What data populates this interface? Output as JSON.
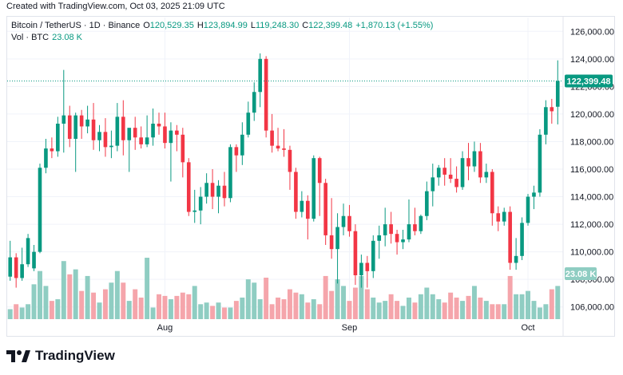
{
  "header": {
    "text": "Created with TradingView.com, Oct 03, 2025 21:09 UTC"
  },
  "legend": {
    "symbol": "Bitcoin / TetherUS · 1D · Binance",
    "o_label": "O",
    "o_value": "120,529.35",
    "h_label": "H",
    "h_value": "123,894.99",
    "l_label": "L",
    "l_value": "119,248.30",
    "c_label": "C",
    "c_value": "122,399.48",
    "change": "+1,870.13 (+1.55%)",
    "vol_label": "Vol · BTC",
    "vol_value": "23.08 K"
  },
  "footer": {
    "brand": "TradingView",
    "logo_icon": "tradingview-logo-icon"
  },
  "colors": {
    "up": "#089981",
    "down": "#f23645",
    "vol_up": "#8fcdc2",
    "vol_down": "#f5a5ab",
    "grid": "#f0f3fa",
    "last_line": "#089981"
  },
  "chart_data": {
    "type": "candlestick",
    "ylim": [
      105000,
      127000
    ],
    "y_ticks": [
      "106,000.00",
      "108,000.00",
      "110,000.00",
      "112,000.00",
      "114,000.00",
      "116,000.00",
      "118,000.00",
      "120,000.00",
      "122,000.00",
      "124,000.00",
      "126,000.00"
    ],
    "x_ticks": [
      {
        "label": "Aug",
        "index": 26
      },
      {
        "label": "Sep",
        "index": 57
      },
      {
        "label": "Oct",
        "index": 87
      }
    ],
    "last_price_label": "122,399.48",
    "last_price": 122399.48,
    "volume_label": "23.08 K",
    "candles": [
      {
        "o": 108200,
        "h": 110800,
        "l": 107900,
        "c": 109600,
        "v": 12
      },
      {
        "o": 109600,
        "h": 109900,
        "l": 107400,
        "c": 108100,
        "v": 18
      },
      {
        "o": 108100,
        "h": 110300,
        "l": 107900,
        "c": 109100,
        "v": 14
      },
      {
        "o": 109100,
        "h": 111300,
        "l": 108900,
        "c": 111000,
        "v": 18
      },
      {
        "o": 108800,
        "h": 110500,
        "l": 108600,
        "c": 110000,
        "v": 42
      },
      {
        "o": 110000,
        "h": 116400,
        "l": 109900,
        "c": 116100,
        "v": 58
      },
      {
        "o": 116100,
        "h": 118200,
        "l": 115700,
        "c": 117500,
        "v": 40
      },
      {
        "o": 117500,
        "h": 118300,
        "l": 116800,
        "c": 117300,
        "v": 22
      },
      {
        "o": 117300,
        "h": 119800,
        "l": 116900,
        "c": 119300,
        "v": 24
      },
      {
        "o": 119300,
        "h": 123200,
        "l": 117200,
        "c": 119900,
        "v": 70
      },
      {
        "o": 119900,
        "h": 120600,
        "l": 117600,
        "c": 118200,
        "v": 54
      },
      {
        "o": 118200,
        "h": 120100,
        "l": 115800,
        "c": 119900,
        "v": 60
      },
      {
        "o": 119900,
        "h": 120300,
        "l": 118200,
        "c": 119100,
        "v": 34
      },
      {
        "o": 119100,
        "h": 120600,
        "l": 118600,
        "c": 119600,
        "v": 52
      },
      {
        "o": 119600,
        "h": 120800,
        "l": 117400,
        "c": 118100,
        "v": 32
      },
      {
        "o": 118100,
        "h": 119200,
        "l": 117300,
        "c": 118700,
        "v": 20
      },
      {
        "o": 118700,
        "h": 119700,
        "l": 116900,
        "c": 117600,
        "v": 36
      },
      {
        "o": 117600,
        "h": 118800,
        "l": 116800,
        "c": 117700,
        "v": 44
      },
      {
        "o": 117700,
        "h": 120800,
        "l": 117300,
        "c": 119800,
        "v": 58
      },
      {
        "o": 119800,
        "h": 121000,
        "l": 117000,
        "c": 118100,
        "v": 44
      },
      {
        "o": 118100,
        "h": 118900,
        "l": 115800,
        "c": 119000,
        "v": 22
      },
      {
        "o": 119000,
        "h": 119800,
        "l": 117400,
        "c": 118300,
        "v": 36
      },
      {
        "o": 118300,
        "h": 119100,
        "l": 117500,
        "c": 117800,
        "v": 26
      },
      {
        "o": 117800,
        "h": 119900,
        "l": 117600,
        "c": 118300,
        "v": 74
      },
      {
        "o": 118300,
        "h": 120400,
        "l": 117700,
        "c": 119300,
        "v": 14
      },
      {
        "o": 119300,
        "h": 120100,
        "l": 118500,
        "c": 119100,
        "v": 30
      },
      {
        "o": 119100,
        "h": 120100,
        "l": 117500,
        "c": 117900,
        "v": 28
      },
      {
        "o": 117900,
        "h": 119400,
        "l": 115100,
        "c": 118800,
        "v": 24
      },
      {
        "o": 118800,
        "h": 119200,
        "l": 117300,
        "c": 118500,
        "v": 28
      },
      {
        "o": 118500,
        "h": 119000,
        "l": 115400,
        "c": 116500,
        "v": 32
      },
      {
        "o": 116500,
        "h": 116800,
        "l": 112600,
        "c": 112900,
        "v": 30
      },
      {
        "o": 112900,
        "h": 114500,
        "l": 112100,
        "c": 113000,
        "v": 40
      },
      {
        "o": 113000,
        "h": 114700,
        "l": 112000,
        "c": 114000,
        "v": 18
      },
      {
        "o": 114000,
        "h": 115700,
        "l": 113500,
        "c": 115000,
        "v": 20
      },
      {
        "o": 115000,
        "h": 116000,
        "l": 113100,
        "c": 114000,
        "v": 16
      },
      {
        "o": 114000,
        "h": 115200,
        "l": 112800,
        "c": 114800,
        "v": 20
      },
      {
        "o": 114800,
        "h": 115800,
        "l": 113300,
        "c": 113900,
        "v": 14
      },
      {
        "o": 113900,
        "h": 117800,
        "l": 113600,
        "c": 117600,
        "v": 14
      },
      {
        "o": 117600,
        "h": 117800,
        "l": 115800,
        "c": 117000,
        "v": 22
      },
      {
        "o": 117000,
        "h": 119400,
        "l": 116300,
        "c": 118500,
        "v": 26
      },
      {
        "o": 118500,
        "h": 120900,
        "l": 118300,
        "c": 120100,
        "v": 48
      },
      {
        "o": 120100,
        "h": 122300,
        "l": 119500,
        "c": 121600,
        "v": 44
      },
      {
        "o": 121600,
        "h": 124400,
        "l": 120500,
        "c": 124000,
        "v": 24
      },
      {
        "o": 124000,
        "h": 124200,
        "l": 118300,
        "c": 118800,
        "v": 50
      },
      {
        "o": 118800,
        "h": 120000,
        "l": 117200,
        "c": 117700,
        "v": 18
      },
      {
        "o": 117700,
        "h": 119000,
        "l": 117300,
        "c": 117500,
        "v": 26
      },
      {
        "o": 117500,
        "h": 118900,
        "l": 116900,
        "c": 117400,
        "v": 24
      },
      {
        "o": 117400,
        "h": 117700,
        "l": 114500,
        "c": 115800,
        "v": 36
      },
      {
        "o": 115800,
        "h": 116100,
        "l": 112400,
        "c": 112900,
        "v": 32
      },
      {
        "o": 112900,
        "h": 114400,
        "l": 112500,
        "c": 113700,
        "v": 30
      },
      {
        "o": 113700,
        "h": 114100,
        "l": 110900,
        "c": 112400,
        "v": 20
      },
      {
        "o": 112400,
        "h": 117000,
        "l": 112200,
        "c": 116800,
        "v": 24
      },
      {
        "o": 116800,
        "h": 116900,
        "l": 112600,
        "c": 115000,
        "v": 18
      },
      {
        "o": 115000,
        "h": 115300,
        "l": 110500,
        "c": 111200,
        "v": 52
      },
      {
        "o": 111200,
        "h": 113900,
        "l": 109500,
        "c": 110200,
        "v": 34
      },
      {
        "o": 110200,
        "h": 112800,
        "l": 107700,
        "c": 111800,
        "v": 48
      },
      {
        "o": 111800,
        "h": 113500,
        "l": 111200,
        "c": 112600,
        "v": 40
      },
      {
        "o": 112600,
        "h": 113400,
        "l": 111100,
        "c": 111500,
        "v": 22
      },
      {
        "o": 111500,
        "h": 112000,
        "l": 107600,
        "c": 108300,
        "v": 38
      },
      {
        "o": 108300,
        "h": 109800,
        "l": 107400,
        "c": 109200,
        "v": 52
      },
      {
        "o": 109200,
        "h": 109700,
        "l": 107400,
        "c": 108600,
        "v": 36
      },
      {
        "o": 108600,
        "h": 111200,
        "l": 108100,
        "c": 110800,
        "v": 26
      },
      {
        "o": 110800,
        "h": 111900,
        "l": 109500,
        "c": 111200,
        "v": 20
      },
      {
        "o": 111200,
        "h": 113200,
        "l": 110400,
        "c": 112000,
        "v": 22
      },
      {
        "o": 112000,
        "h": 112900,
        "l": 110600,
        "c": 111300,
        "v": 30
      },
      {
        "o": 111300,
        "h": 111600,
        "l": 109800,
        "c": 110700,
        "v": 22
      },
      {
        "o": 110700,
        "h": 111600,
        "l": 110200,
        "c": 110900,
        "v": 16
      },
      {
        "o": 110900,
        "h": 113800,
        "l": 110700,
        "c": 112000,
        "v": 26
      },
      {
        "o": 112000,
        "h": 113200,
        "l": 111200,
        "c": 111500,
        "v": 20
      },
      {
        "o": 111500,
        "h": 112700,
        "l": 111300,
        "c": 112600,
        "v": 30
      },
      {
        "o": 112600,
        "h": 115100,
        "l": 112300,
        "c": 114400,
        "v": 38
      },
      {
        "o": 114400,
        "h": 116400,
        "l": 113300,
        "c": 115400,
        "v": 30
      },
      {
        "o": 115400,
        "h": 116300,
        "l": 114800,
        "c": 116100,
        "v": 24
      },
      {
        "o": 116100,
        "h": 116800,
        "l": 114800,
        "c": 115600,
        "v": 20
      },
      {
        "o": 115600,
        "h": 116800,
        "l": 115000,
        "c": 115300,
        "v": 32
      },
      {
        "o": 115300,
        "h": 116200,
        "l": 114300,
        "c": 114700,
        "v": 26
      },
      {
        "o": 114700,
        "h": 117300,
        "l": 114500,
        "c": 116800,
        "v": 22
      },
      {
        "o": 116800,
        "h": 117900,
        "l": 115200,
        "c": 116200,
        "v": 28
      },
      {
        "o": 116200,
        "h": 118000,
        "l": 115800,
        "c": 117300,
        "v": 40
      },
      {
        "o": 117300,
        "h": 117900,
        "l": 115000,
        "c": 115400,
        "v": 26
      },
      {
        "o": 115400,
        "h": 116400,
        "l": 115000,
        "c": 115800,
        "v": 22
      },
      {
        "o": 115800,
        "h": 116000,
        "l": 111900,
        "c": 112800,
        "v": 18
      },
      {
        "o": 112800,
        "h": 113300,
        "l": 111500,
        "c": 112200,
        "v": 18
      },
      {
        "o": 112200,
        "h": 113200,
        "l": 111900,
        "c": 112900,
        "v": 18
      },
      {
        "o": 112900,
        "h": 113300,
        "l": 108700,
        "c": 109200,
        "v": 52
      },
      {
        "o": 109200,
        "h": 111000,
        "l": 108700,
        "c": 109700,
        "v": 30
      },
      {
        "o": 109700,
        "h": 112500,
        "l": 109400,
        "c": 112100,
        "v": 30
      },
      {
        "o": 112100,
        "h": 114200,
        "l": 111900,
        "c": 114000,
        "v": 34
      },
      {
        "o": 114000,
        "h": 114800,
        "l": 113100,
        "c": 114300,
        "v": 22
      },
      {
        "o": 114300,
        "h": 118900,
        "l": 114000,
        "c": 118500,
        "v": 14
      },
      {
        "o": 118500,
        "h": 121000,
        "l": 117800,
        "c": 120500,
        "v": 18
      },
      {
        "o": 120500,
        "h": 121100,
        "l": 119300,
        "c": 120200,
        "v": 36
      },
      {
        "o": 120529.35,
        "h": 123894.99,
        "l": 119248.3,
        "c": 122399.48,
        "v": 40
      }
    ]
  }
}
